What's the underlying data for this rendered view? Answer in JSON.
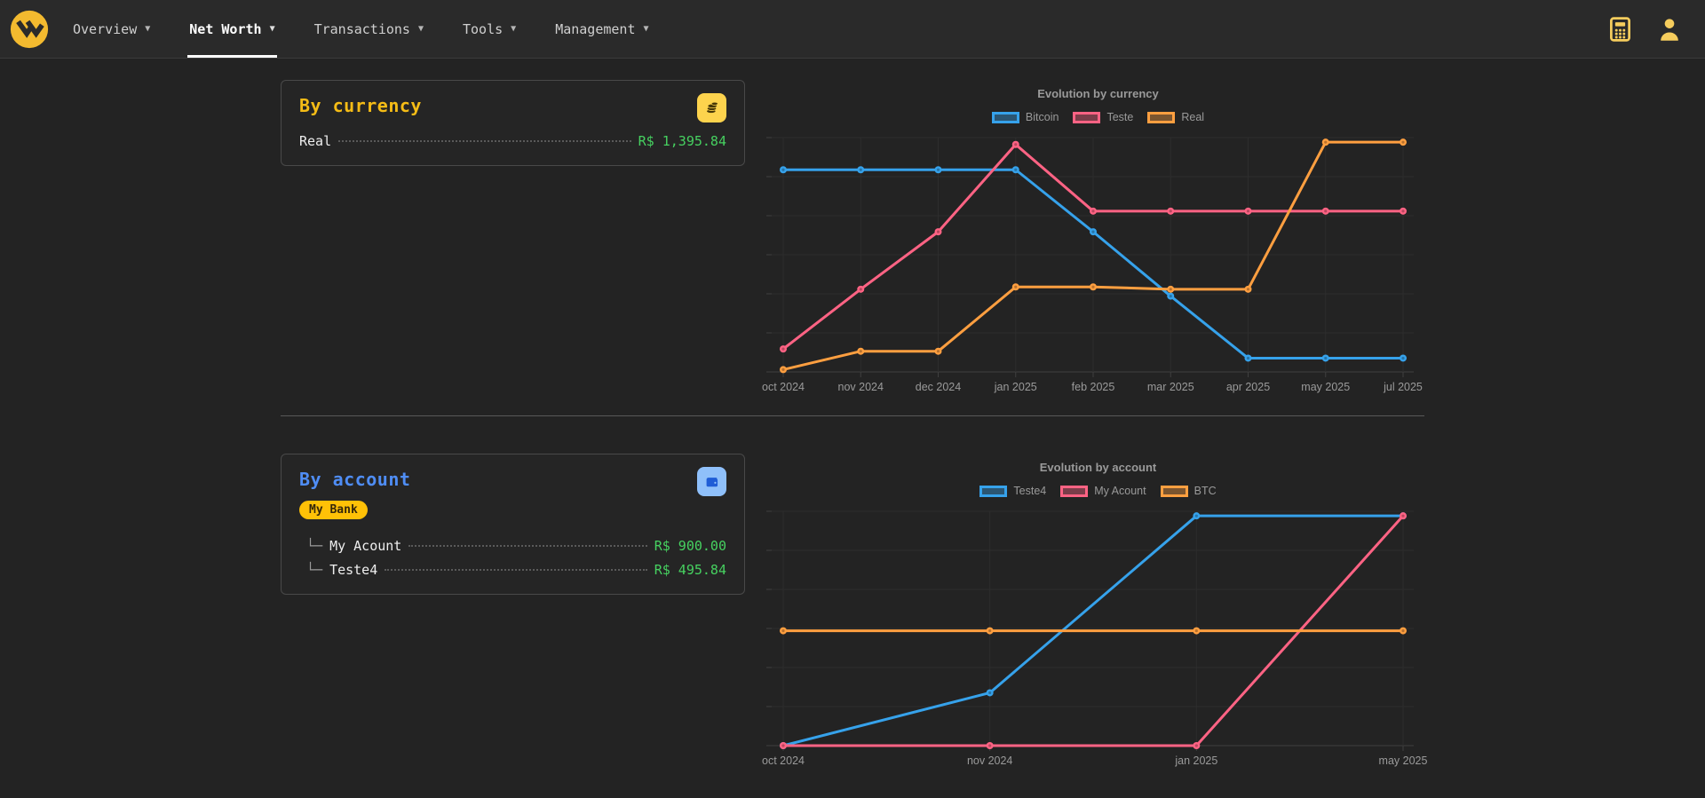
{
  "nav": {
    "items": [
      {
        "label": "Overview",
        "active": false
      },
      {
        "label": "Net Worth",
        "active": true
      },
      {
        "label": "Transactions",
        "active": false
      },
      {
        "label": "Tools",
        "active": false
      },
      {
        "label": "Management",
        "active": false
      }
    ],
    "right_icons": [
      "calculator",
      "user"
    ]
  },
  "cards": {
    "currency": {
      "title": "By currency",
      "icon": "coins",
      "accent_color": "#f5bc16",
      "rows": [
        {
          "label": "Real",
          "value": "R$ 1,395.84"
        }
      ]
    },
    "account": {
      "title": "By account",
      "icon": "wallet",
      "accent_color": "#4f8df5",
      "badge": "My Bank",
      "rows": [
        {
          "prefix": "└─",
          "label": "My Acount",
          "value": "R$ 900.00"
        },
        {
          "prefix": "└─",
          "label": "Teste4",
          "value": "R$ 495.84"
        }
      ]
    }
  },
  "colors": {
    "value_green": "#46d160",
    "badge_yellow": "#ffc107",
    "brand_gold": "#f3ba2f",
    "line_blue": "#36a2eb",
    "line_pink": "#ff6384",
    "line_orange": "#ff9f40"
  },
  "chart_data": [
    {
      "type": "line",
      "title": "Evolution by currency",
      "categories": [
        "oct 2024",
        "nov 2024",
        "dec 2024",
        "jan 2025",
        "feb 2025",
        "mar 2025",
        "apr 2025",
        "may 2025",
        "jul 2025"
      ],
      "series": [
        {
          "name": "Bitcoin",
          "color": "#36a2eb",
          "values": [
            88,
            88,
            88,
            88,
            61,
            33,
            6,
            6,
            6
          ]
        },
        {
          "name": "Teste",
          "color": "#ff6384",
          "values": [
            10,
            36,
            61,
            99,
            70,
            70,
            70,
            70,
            70
          ]
        },
        {
          "name": "Real",
          "color": "#ff9f40",
          "values": [
            1,
            9,
            9,
            37,
            37,
            36,
            36,
            100,
            100
          ]
        }
      ],
      "ylim": [
        0,
        102
      ],
      "y_ticks": "hidden (values estimated on relative 0-100 scale)",
      "legend_position": "top",
      "grid": true
    },
    {
      "type": "line",
      "title": "Evolution by account",
      "categories": [
        "oct 2024",
        "nov 2024",
        "jan 2025",
        "may 2025"
      ],
      "series": [
        {
          "name": "Teste4",
          "color": "#36a2eb",
          "values": [
            0,
            23,
            100,
            100
          ]
        },
        {
          "name": "My Acount",
          "color": "#ff6384",
          "values": [
            0,
            0,
            0,
            100
          ]
        },
        {
          "name": "BTC",
          "color": "#ff9f40",
          "values": [
            50,
            50,
            50,
            50
          ]
        }
      ],
      "ylim": [
        0,
        102
      ],
      "y_ticks": "hidden (values estimated on relative 0-100 scale)",
      "legend_position": "top",
      "grid": true
    }
  ]
}
